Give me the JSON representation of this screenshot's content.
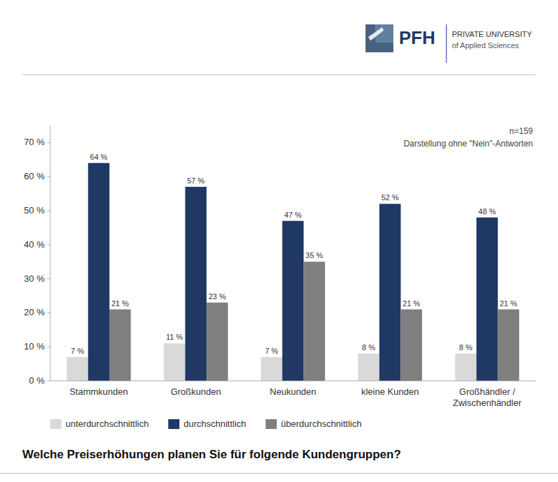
{
  "chart_data": {
    "type": "bar",
    "title": "Welche Preiserhöhungen planen Sie für folgende Kundengruppen?",
    "annotations": [
      "n=159",
      "Darstellung ohne \"Nein\"-Antworten",
      "PFH",
      "PRIVATE UNIVERSITY",
      "of Applied Sciences"
    ],
    "categories": [
      "Stammkunden",
      "Großkunden",
      "Neukunden",
      "kleine Kunden",
      "Großhändler /\nZwischenhändler"
    ],
    "series": [
      {
        "name": "unterdurchschnittlich",
        "color": "#d9d9d9",
        "values": [
          7,
          11,
          7,
          8,
          8
        ],
        "value_labels": [
          "7 %",
          "11 %",
          "7 %",
          "8 %",
          "8 %"
        ]
      },
      {
        "name": "durchschnittlich",
        "color": "#1f3864",
        "values": [
          64,
          57,
          47,
          52,
          48
        ],
        "value_labels": [
          "64 %",
          "57 %",
          "47 %",
          "52 %",
          "48 %"
        ]
      },
      {
        "name": "überdurchschnittlich",
        "color": "#7f7f7f",
        "values": [
          21,
          23,
          35,
          21,
          21
        ],
        "value_labels": [
          "21 %",
          "23 %",
          "35 %",
          "21 %",
          "21 %"
        ]
      }
    ],
    "ylim": [
      0,
      75
    ],
    "yticks": [
      {
        "value": 0,
        "label": "0 %"
      },
      {
        "value": 10,
        "label": "10 %"
      },
      {
        "value": 20,
        "label": "20 %"
      },
      {
        "value": 30,
        "label": "30 %"
      },
      {
        "value": 40,
        "label": "40 %"
      },
      {
        "value": 50,
        "label": "50 %"
      },
      {
        "value": 60,
        "label": "60 %"
      },
      {
        "value": 70,
        "label": "70 %"
      }
    ],
    "grid": false,
    "legend": "bottom",
    "data_labels": true
  }
}
